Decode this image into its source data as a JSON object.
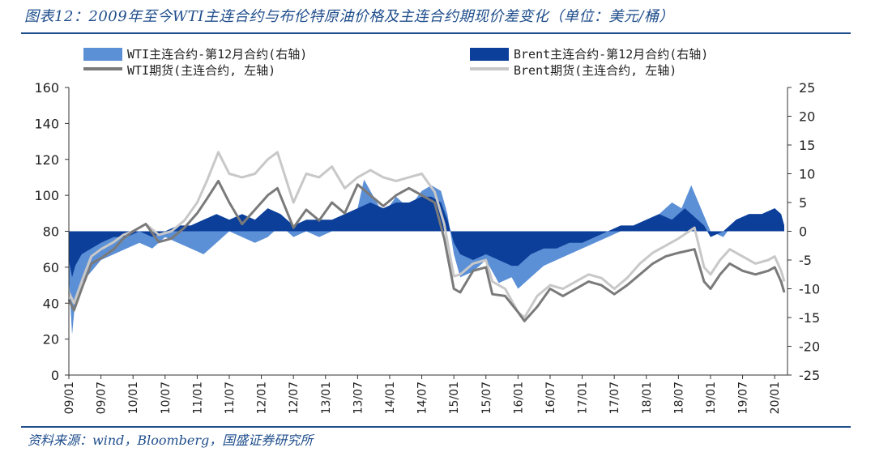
{
  "title": "图表12：2009年至今WTI主连合约与布伦特原油价格及主连合约期现价差变化（单位：美元/桶）",
  "source": "资料来源：wind，Bloomberg，国盛证券研究所",
  "colors": {
    "wti_spread": "#5b8fd6",
    "brent_spread": "#0b3f9a",
    "wti_price": "#7a7a7a",
    "brent_price": "#c8c8c8",
    "rule": "#1f4e8c"
  },
  "chart_data": {
    "type": "line",
    "title": "2009年至今WTI主连合约与布伦特原油价格及主连合约期现价差变化（单位：美元/桶）",
    "legend": [
      {
        "key": "wti_spread",
        "label": "WTI主连合约-第12月合约(右轴)",
        "style": "area"
      },
      {
        "key": "brent_spread",
        "label": "Brent主连合约-第12月合约(右轴)",
        "style": "area"
      },
      {
        "key": "wti_price",
        "label": "WTI期货(主连合约, 左轴)",
        "style": "line"
      },
      {
        "key": "brent_price",
        "label": "Brent期货(主连合约, 左轴)",
        "style": "line"
      }
    ],
    "y_left": {
      "min": 0,
      "max": 160,
      "ticks": [
        "0",
        "20",
        "40",
        "60",
        "80",
        "100",
        "120",
        "140",
        "160"
      ]
    },
    "y_right": {
      "min": -25,
      "max": 25,
      "ticks": [
        "-25",
        "-20",
        "-15",
        "-10",
        "-5",
        "0",
        "5",
        "10",
        "15",
        "20",
        "25"
      ]
    },
    "x_ticks": [
      "09/01",
      "09/07",
      "10/01",
      "10/07",
      "11/01",
      "11/07",
      "12/01",
      "12/07",
      "13/01",
      "13/07",
      "14/01",
      "14/07",
      "15/01",
      "15/07",
      "16/01",
      "16/07",
      "17/01",
      "17/07",
      "18/01",
      "18/07",
      "19/01",
      "19/07",
      "20/01"
    ],
    "x_range": [
      2009.0,
      2020.2
    ],
    "series": [
      {
        "name": "WTI期货(主连合约, 左轴)",
        "axis": "left",
        "t": [
          2009.0,
          2009.08,
          2009.2,
          2009.35,
          2009.5,
          2009.7,
          2009.85,
          2010.0,
          2010.2,
          2010.4,
          2010.6,
          2010.8,
          2011.0,
          2011.15,
          2011.33,
          2011.5,
          2011.7,
          2011.9,
          2012.1,
          2012.25,
          2012.5,
          2012.7,
          2012.9,
          2013.1,
          2013.3,
          2013.5,
          2013.7,
          2013.9,
          2014.1,
          2014.3,
          2014.5,
          2014.7,
          2014.85,
          2015.0,
          2015.1,
          2015.3,
          2015.5,
          2015.6,
          2015.8,
          2016.0,
          2016.1,
          2016.3,
          2016.5,
          2016.7,
          2016.9,
          2017.1,
          2017.3,
          2017.5,
          2017.7,
          2017.9,
          2018.1,
          2018.3,
          2018.5,
          2018.75,
          2018.9,
          2019.0,
          2019.15,
          2019.3,
          2019.5,
          2019.7,
          2019.9,
          2020.0,
          2020.1,
          2020.15
        ],
        "v": [
          42,
          36,
          48,
          62,
          65,
          70,
          76,
          80,
          84,
          74,
          76,
          82,
          90,
          98,
          108,
          96,
          84,
          92,
          100,
          104,
          82,
          92,
          86,
          96,
          90,
          106,
          100,
          94,
          100,
          104,
          100,
          96,
          76,
          48,
          46,
          58,
          60,
          45,
          44,
          35,
          30,
          38,
          48,
          44,
          48,
          52,
          50,
          45,
          50,
          56,
          62,
          66,
          68,
          70,
          52,
          48,
          56,
          62,
          58,
          56,
          58,
          60,
          52,
          46
        ]
      },
      {
        "name": "Brent期货(主连合约, 左轴)",
        "axis": "left",
        "t": [
          2009.0,
          2009.08,
          2009.2,
          2009.35,
          2009.5,
          2009.7,
          2009.85,
          2010.0,
          2010.2,
          2010.4,
          2010.6,
          2010.8,
          2011.0,
          2011.15,
          2011.33,
          2011.5,
          2011.7,
          2011.9,
          2012.1,
          2012.25,
          2012.5,
          2012.7,
          2012.9,
          2013.1,
          2013.3,
          2013.5,
          2013.7,
          2013.9,
          2014.1,
          2014.3,
          2014.5,
          2014.7,
          2014.85,
          2015.0,
          2015.1,
          2015.3,
          2015.5,
          2015.6,
          2015.8,
          2016.0,
          2016.1,
          2016.3,
          2016.5,
          2016.7,
          2016.9,
          2017.1,
          2017.3,
          2017.5,
          2017.7,
          2017.9,
          2018.1,
          2018.3,
          2018.5,
          2018.75,
          2018.9,
          2019.0,
          2019.15,
          2019.3,
          2019.5,
          2019.7,
          2019.9,
          2020.0,
          2020.1,
          2020.15
        ],
        "v": [
          46,
          40,
          52,
          66,
          70,
          74,
          78,
          80,
          84,
          78,
          80,
          86,
          96,
          108,
          124,
          112,
          110,
          112,
          120,
          124,
          96,
          112,
          110,
          116,
          104,
          110,
          114,
          110,
          108,
          110,
          112,
          102,
          84,
          55,
          56,
          62,
          64,
          52,
          48,
          35,
          32,
          44,
          50,
          48,
          52,
          56,
          54,
          48,
          54,
          62,
          68,
          72,
          76,
          82,
          60,
          56,
          64,
          70,
          66,
          62,
          64,
          66,
          58,
          52
        ]
      }
    ],
    "spreads": [
      {
        "name": "WTI主连合约-第12月合约(右轴)",
        "axis": "right",
        "t": [
          2009.0,
          2009.05,
          2009.1,
          2009.2,
          2009.35,
          2009.5,
          2009.7,
          2009.9,
          2010.1,
          2010.3,
          2010.5,
          2010.7,
          2010.9,
          2011.1,
          2011.3,
          2011.5,
          2011.7,
          2011.9,
          2012.1,
          2012.3,
          2012.5,
          2012.7,
          2012.9,
          2013.1,
          2013.3,
          2013.5,
          2013.6,
          2013.75,
          2013.9,
          2014.1,
          2014.3,
          2014.5,
          2014.65,
          2014.8,
          2014.9,
          2015.0,
          2015.1,
          2015.3,
          2015.5,
          2015.7,
          2015.9,
          2016.0,
          2016.2,
          2016.4,
          2016.6,
          2016.8,
          2017.0,
          2017.2,
          2017.4,
          2017.6,
          2017.8,
          2018.0,
          2018.2,
          2018.4,
          2018.55,
          2018.7,
          2018.85,
          2019.0,
          2019.2,
          2019.4,
          2019.6,
          2019.8,
          2020.0,
          2020.1,
          2020.15
        ],
        "v": [
          -8,
          -18,
          -12,
          -9,
          -7,
          -5,
          -4,
          -3,
          -2,
          -3,
          -1,
          -2,
          -3,
          -4,
          -2,
          0,
          -1,
          -2,
          -1,
          1,
          -1,
          0,
          -1,
          0,
          2,
          4,
          9,
          6,
          3,
          6,
          4,
          7,
          8,
          7,
          3,
          -4,
          -8,
          -7,
          -5,
          -9,
          -8,
          -10,
          -8,
          -6,
          -5,
          -4,
          -3,
          -2,
          -1,
          0,
          1,
          2,
          3,
          5,
          4,
          8,
          4,
          0,
          -1,
          2,
          3,
          3,
          4,
          3,
          1
        ]
      },
      {
        "name": "Brent主连合约-第12月合约(右轴)",
        "axis": "right",
        "t": [
          2009.0,
          2009.05,
          2009.1,
          2009.2,
          2009.35,
          2009.5,
          2009.7,
          2009.9,
          2010.1,
          2010.3,
          2010.5,
          2010.7,
          2010.9,
          2011.1,
          2011.3,
          2011.5,
          2011.7,
          2011.9,
          2012.1,
          2012.3,
          2012.5,
          2012.7,
          2012.9,
          2013.1,
          2013.3,
          2013.5,
          2013.7,
          2013.9,
          2014.1,
          2014.3,
          2014.5,
          2014.65,
          2014.8,
          2014.9,
          2015.0,
          2015.1,
          2015.3,
          2015.5,
          2015.7,
          2015.9,
          2016.0,
          2016.2,
          2016.4,
          2016.6,
          2016.8,
          2017.0,
          2017.2,
          2017.4,
          2017.6,
          2017.8,
          2018.0,
          2018.2,
          2018.4,
          2018.6,
          2018.8,
          2018.9,
          2019.0,
          2019.2,
          2019.4,
          2019.6,
          2019.8,
          2020.0,
          2020.1,
          2020.15
        ],
        "v": [
          -5,
          -8,
          -6,
          -4,
          -3,
          -2,
          -1,
          -1,
          0,
          -1,
          0,
          1,
          1,
          2,
          3,
          2,
          3,
          2,
          4,
          3,
          1,
          2,
          2,
          2,
          3,
          4,
          5,
          4,
          5,
          5,
          6,
          6,
          5,
          2,
          -2,
          -4,
          -5,
          -4,
          -5,
          -6,
          -6,
          -4,
          -3,
          -3,
          -2,
          -2,
          -1,
          0,
          1,
          1,
          2,
          3,
          2,
          4,
          2,
          1,
          -1,
          0,
          2,
          3,
          3,
          4,
          3,
          1
        ]
      }
    ]
  }
}
